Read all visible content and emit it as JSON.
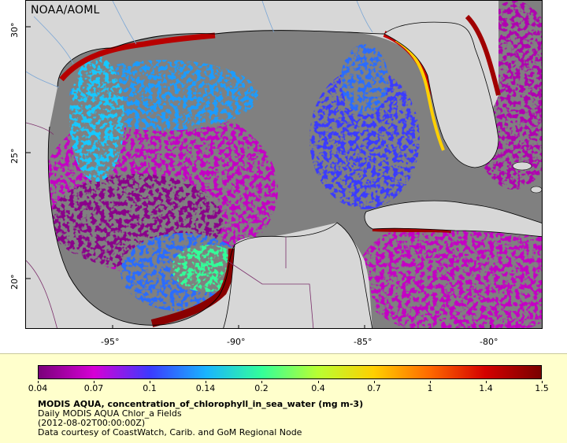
{
  "map": {
    "agency_label": "NOAA/AOML",
    "x_ticks": [
      "-95°",
      "-90°",
      "-85°",
      "-80°"
    ],
    "y_ticks": [
      "30°",
      "25°",
      "20°"
    ],
    "colors": {
      "land": "#d7d7d7",
      "cloud_nodata": "#808080",
      "coast": "#000000",
      "rivers": "#7aa6d6",
      "borders": "#7b2f6b"
    }
  },
  "legend": {
    "colorbar_labels": [
      "0.04",
      "0.07",
      "0.1",
      "0.14",
      "0.2",
      "0.4",
      "0.7",
      "1",
      "1.4",
      "1.5"
    ],
    "colorbar_colors": [
      "#7a007a",
      "#d600d6",
      "#3b3bff",
      "#19b4ff",
      "#33ff99",
      "#b8ff33",
      "#ffd000",
      "#ff6a00",
      "#d40000",
      "#7a0000"
    ],
    "title": "MODIS AQUA, concentration_of_chlorophyll_in_sea_water (mg m-3)",
    "subtitle": "Daily MODIS AQUA Chlor_a Fields",
    "time": "(2012-08-02T00:00:00Z)",
    "credit": "Data courtesy of CoastWatch, Carib. and GoM Regional Node"
  }
}
